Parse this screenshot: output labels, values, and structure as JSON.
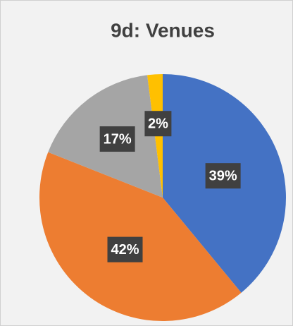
{
  "chart_data": {
    "type": "pie",
    "title": "9d: Venues",
    "values": [
      39,
      42,
      17,
      2
    ],
    "value_labels": [
      "39%",
      "42%",
      "17%",
      "2%"
    ],
    "colors": [
      "#4472c4",
      "#ed7d31",
      "#a5a5a5",
      "#ffc000"
    ]
  }
}
